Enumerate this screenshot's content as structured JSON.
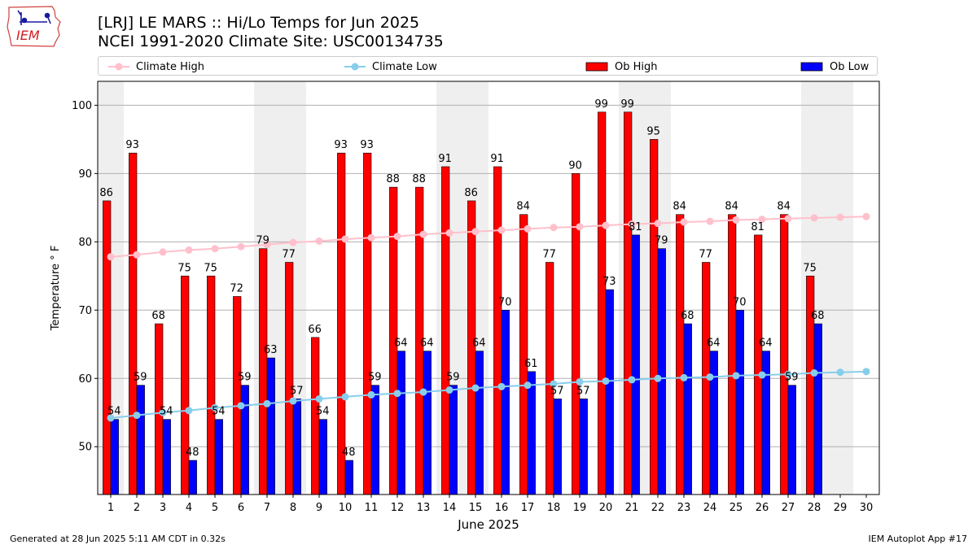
{
  "header": {
    "logo_text": "IEM",
    "title_line1": "[LRJ] LE MARS :: Hi/Lo Temps for Jun 2025",
    "title_line2": "NCEI 1991-2020 Climate Site: USC00134735"
  },
  "footer": {
    "generated": "Generated at 28 Jun 2025 5:11 AM CDT in 0.32s",
    "app": "IEM Autoplot App #17"
  },
  "colors": {
    "ob_high": "#ff0000",
    "ob_low": "#0000ff",
    "climate_high": "#ffc0cb",
    "climate_low": "#87ceeb",
    "weekend_band": "#efefef",
    "grid": "#b0b0b0"
  },
  "chart_data": {
    "type": "bar",
    "xlabel": "June 2025",
    "ylabel": "Temperature ° F",
    "ylim": [
      43,
      103.5
    ],
    "xlim": [
      0.5,
      30.5
    ],
    "yticks": [
      50,
      60,
      70,
      80,
      90,
      100
    ],
    "grid": "horizontal",
    "legend_position": "top",
    "weekend_bands": [
      [
        0.5,
        1.5
      ],
      [
        6.5,
        8.5
      ],
      [
        13.5,
        15.5
      ],
      [
        20.5,
        22.5
      ],
      [
        27.5,
        29.5
      ]
    ],
    "days": [
      1,
      2,
      3,
      4,
      5,
      6,
      7,
      8,
      9,
      10,
      11,
      12,
      13,
      14,
      15,
      16,
      17,
      18,
      19,
      20,
      21,
      22,
      23,
      24,
      25,
      26,
      27,
      28,
      29,
      30
    ],
    "series": [
      {
        "name": "Climate High",
        "kind": "line",
        "values": [
          77.8,
          78.1,
          78.5,
          78.8,
          79.0,
          79.3,
          79.6,
          79.9,
          80.1,
          80.4,
          80.6,
          80.8,
          81.1,
          81.3,
          81.5,
          81.7,
          81.9,
          82.1,
          82.2,
          82.4,
          82.6,
          82.7,
          82.9,
          83.0,
          83.2,
          83.3,
          83.4,
          83.5,
          83.6,
          83.7
        ]
      },
      {
        "name": "Climate Low",
        "kind": "line",
        "values": [
          54.2,
          54.6,
          55.0,
          55.3,
          55.7,
          56.0,
          56.3,
          56.7,
          57.0,
          57.3,
          57.6,
          57.8,
          58.0,
          58.3,
          58.6,
          58.8,
          59.0,
          59.2,
          59.5,
          59.6,
          59.8,
          60.0,
          60.1,
          60.2,
          60.4,
          60.5,
          60.6,
          60.8,
          60.9,
          61.0
        ]
      },
      {
        "name": "Ob High",
        "kind": "bar",
        "values": [
          86,
          93,
          68,
          75,
          75,
          72,
          79,
          77,
          66,
          93,
          93,
          88,
          88,
          91,
          86,
          91,
          84,
          77,
          90,
          99,
          99,
          95,
          84,
          77,
          84,
          81,
          84,
          75,
          null,
          null
        ]
      },
      {
        "name": "Ob Low",
        "kind": "bar",
        "values": [
          54,
          59,
          54,
          48,
          54,
          59,
          63,
          57,
          54,
          48,
          59,
          64,
          64,
          59,
          64,
          70,
          61,
          57,
          57,
          73,
          81,
          79,
          68,
          64,
          70,
          64,
          59,
          68,
          null,
          null
        ]
      }
    ]
  }
}
